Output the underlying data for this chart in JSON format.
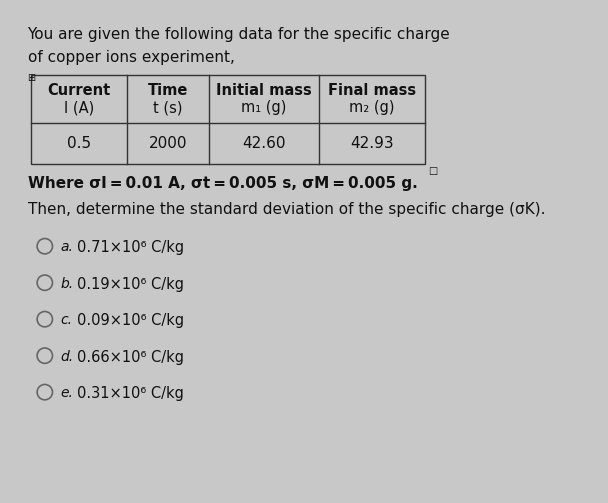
{
  "title_line1": "You are given the following data for the specific charge",
  "title_line2": "of copper ions experiment,",
  "table_col_headers_top": [
    "Current",
    "Time",
    "Initial mass",
    "Final mass"
  ],
  "table_col_headers_bot": [
    "I (A)",
    "t (s)",
    "m₁ (g)",
    "m₂ (g)"
  ],
  "table_data": [
    "0.5",
    "2000",
    "42.60",
    "42.93"
  ],
  "where_text": "Where σI = 0.01 A, σt = 0.005 s, σM = 0.005 g.",
  "question_text": "Then, determine the standard deviation of the specific charge (σK).",
  "options": [
    {
      "label": "a.",
      "text": "0.71×10⁶ C/kg"
    },
    {
      "label": "b.",
      "text": "0.19×10⁶ C/kg"
    },
    {
      "label": "c.",
      "text": "0.09×10⁶ C/kg"
    },
    {
      "label": "d.",
      "text": "0.66×10⁶ C/kg"
    },
    {
      "label": "e.",
      "text": "0.31×10⁶ C/kg"
    }
  ],
  "bg_color": "#c8c8c8",
  "content_bg": "#ffffff",
  "table_border_color": "#333333",
  "text_color": "#111111",
  "circle_color": "#666666",
  "title_fontsize": 11.0,
  "body_fontsize": 11.0,
  "option_fontsize": 10.5,
  "table_header_fontsize": 10.5,
  "table_data_fontsize": 11.0
}
